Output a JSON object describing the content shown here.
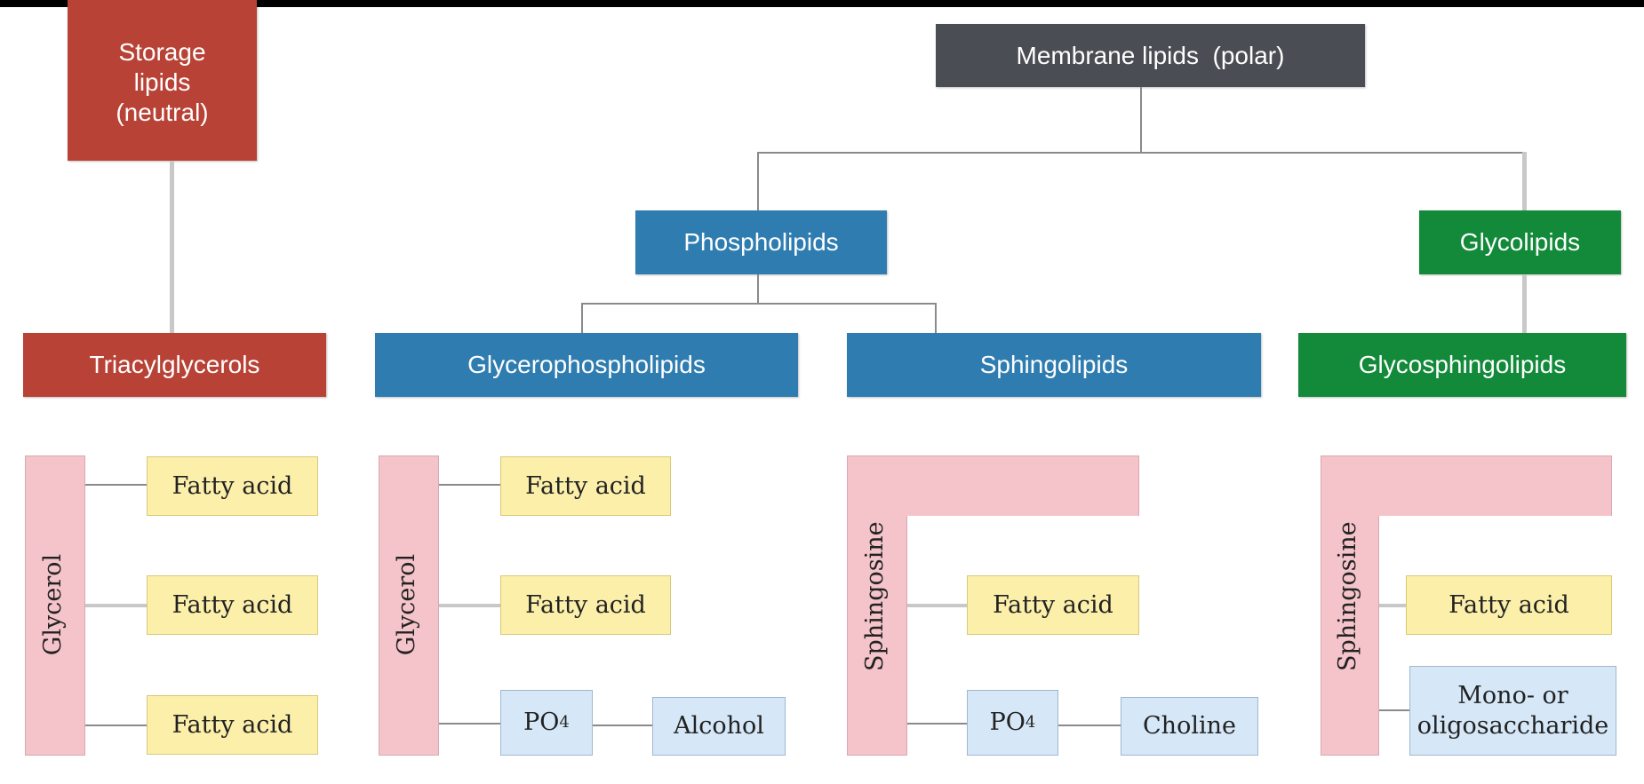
{
  "colors": {
    "storage": "#b84236",
    "membrane": "#4a4d53",
    "phospho": "#2f7db0",
    "glyco": "#128a3a",
    "backbone": "#f5c4cb",
    "fatty_acid": "#fbefaa",
    "head_group": "#d6e8f8"
  },
  "top_nodes": {
    "storage": "Storage lipids (neutral)",
    "membrane": "Membrane lipids  (polar)"
  },
  "mid_nodes": {
    "phospholipids": "Phospholipids",
    "glycolipids": "Glycolipids"
  },
  "classes": {
    "triacylglycerols": "Triacylglycerols",
    "glycerophospholipids": "Glycerophospholipids",
    "sphingolipids": "Sphingolipids",
    "glycosphingolipids": "Glycosphingolipids"
  },
  "structures": {
    "triacyl": {
      "backbone": "Glycerol",
      "fa1": "Fatty acid",
      "fa2": "Fatty acid",
      "fa3": "Fatty acid"
    },
    "glycerophospho": {
      "backbone": "Glycerol",
      "fa1": "Fatty acid",
      "fa2": "Fatty acid",
      "phosphate": "PO",
      "phosphate_sub": "4",
      "head": "Alcohol"
    },
    "sphingo": {
      "backbone": "Sphingosine",
      "fa": "Fatty acid",
      "phosphate": "PO",
      "phosphate_sub": "4",
      "head": "Choline"
    },
    "glycosphingo": {
      "backbone": "Sphingosine",
      "fa": "Fatty acid",
      "sugar_line1": "Mono- or",
      "sugar_line2": "oligosaccharide"
    }
  }
}
